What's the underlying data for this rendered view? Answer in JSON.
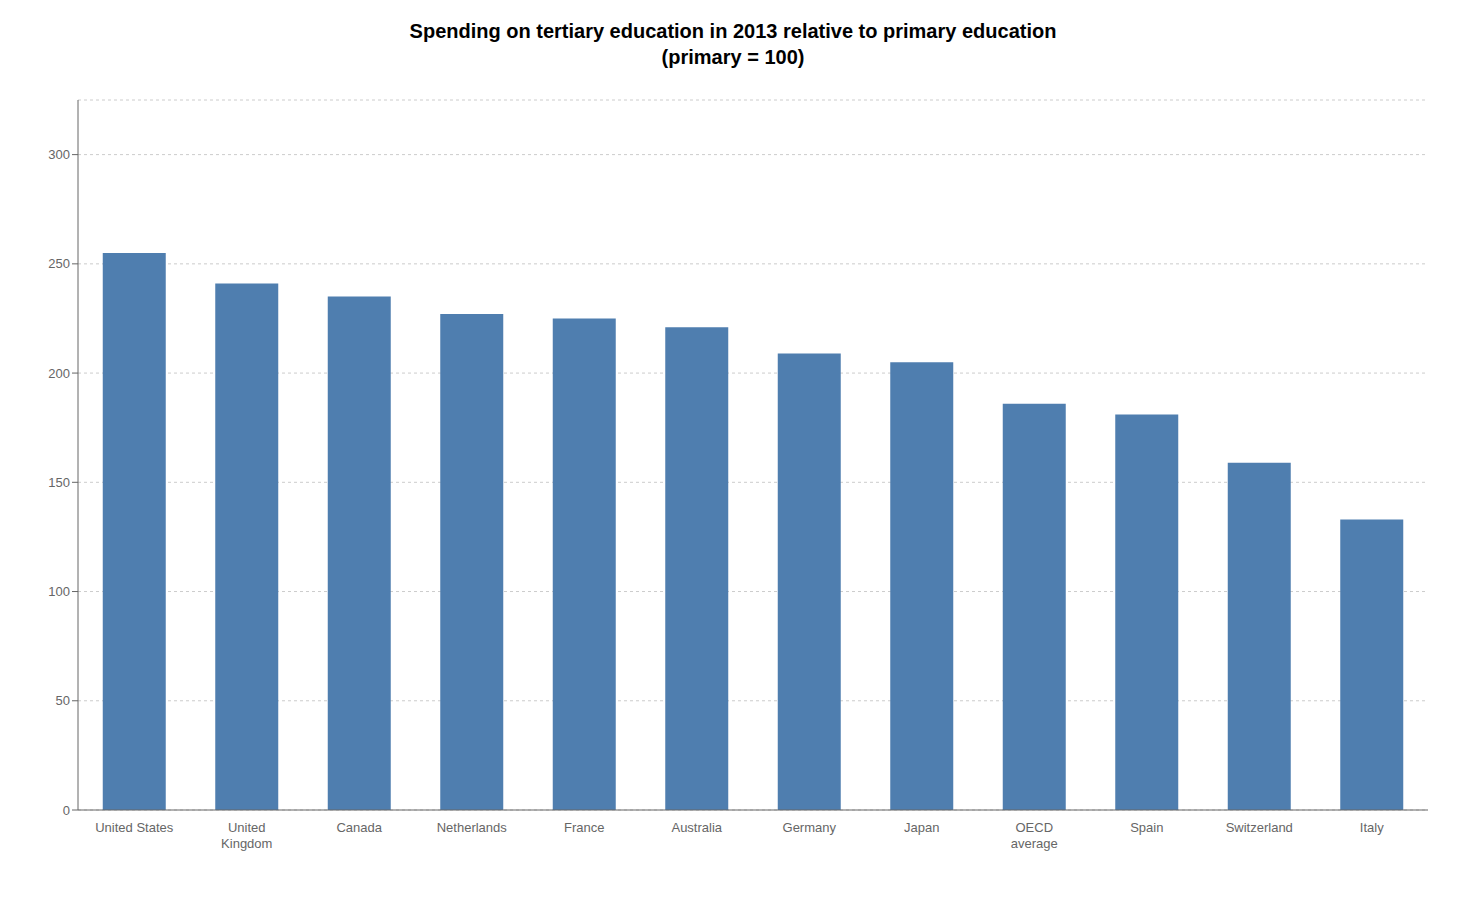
{
  "chart_data": {
    "type": "bar",
    "title": "Spending on tertiary education in 2013 relative to primary education\n(primary = 100)",
    "categories": [
      "United States",
      "United\nKingdom",
      "Canada",
      "Netherlands",
      "France",
      "Australia",
      "Germany",
      "Japan",
      "OECD\naverage",
      "Spain",
      "Switzerland",
      "Italy"
    ],
    "values": [
      255,
      241,
      235,
      227,
      225,
      221,
      209,
      205,
      186,
      181,
      159,
      133
    ],
    "color": "#4F7EAF",
    "ylim": [
      0,
      325
    ],
    "yticks": [
      0,
      50,
      100,
      150,
      200,
      250,
      300
    ],
    "grid": true
  }
}
